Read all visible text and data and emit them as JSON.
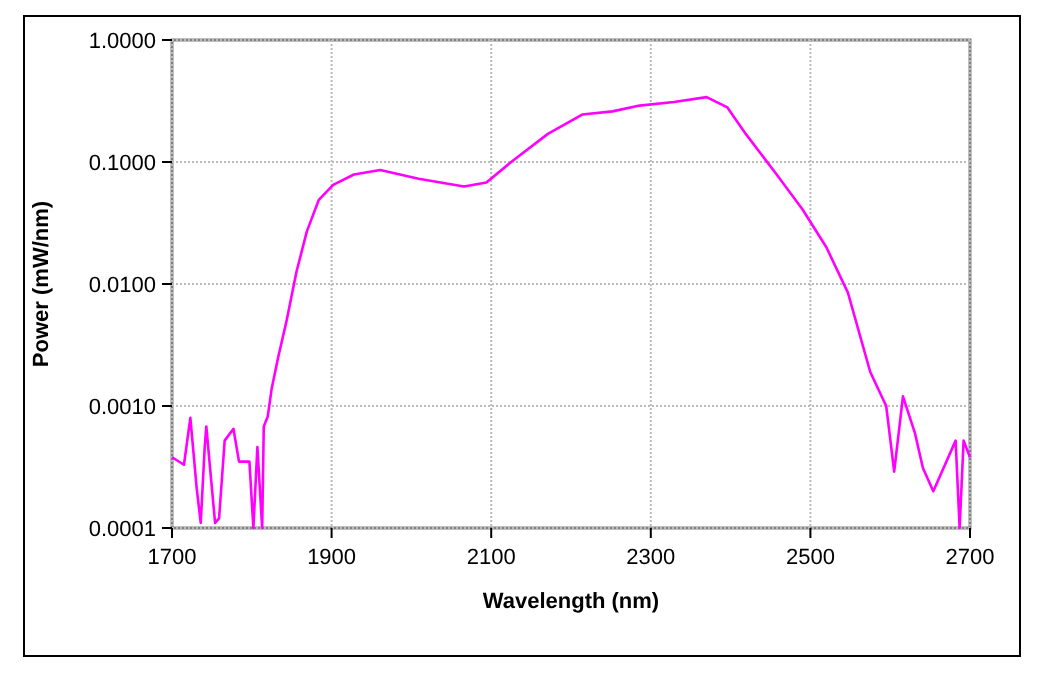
{
  "chart_data": {
    "type": "line",
    "xlabel": "Wavelength (nm)",
    "ylabel": "Power (mW/nm)",
    "log": "y",
    "grid": true,
    "marker": "none",
    "line_style": "solid",
    "xlim": [
      1700,
      2700
    ],
    "xticks": [
      1700,
      1900,
      2100,
      2300,
      2500,
      2700
    ],
    "ylim": [
      0.0001,
      1
    ],
    "yticks": [
      {
        "value": 0.0001,
        "label": "0.0001"
      },
      {
        "value": 0.001,
        "label": "0.0010"
      },
      {
        "value": 0.01,
        "label": "0.0100"
      },
      {
        "value": 0.1,
        "label": "0.1000"
      },
      {
        "value": 1,
        "label": "1.0000"
      }
    ],
    "series": [
      {
        "color": "#ff00ff",
        "x": [
          1700,
          1715,
          1723,
          1731,
          1736,
          1741,
          1743,
          1749,
          1754,
          1759,
          1766,
          1777,
          1784,
          1797,
          1802,
          1807,
          1813,
          1815,
          1820,
          1825,
          1833,
          1843,
          1856,
          1869,
          1884,
          1902,
          1928,
          1961,
          2009,
          2066,
          2094,
          2125,
          2171,
          2214,
          2252,
          2286,
          2329,
          2370,
          2396,
          2419,
          2457,
          2490,
          2520,
          2547,
          2575,
          2595,
          2605,
          2616,
          2631,
          2641,
          2654,
          2682,
          2687,
          2692,
          2700
        ],
        "values": [
          0.00038,
          0.00033,
          0.0008,
          0.00021,
          0.00011,
          0.00046,
          0.00068,
          0.00025,
          0.00011,
          0.00012,
          0.00052,
          0.00065,
          0.00035,
          0.00035,
          0.0001,
          0.00046,
          0.0001,
          0.00068,
          0.00082,
          0.0014,
          0.0025,
          0.0048,
          0.0126,
          0.027,
          0.049,
          0.065,
          0.079,
          0.086,
          0.073,
          0.063,
          0.068,
          0.1,
          0.17,
          0.245,
          0.26,
          0.29,
          0.31,
          0.34,
          0.28,
          0.17,
          0.08,
          0.041,
          0.02,
          0.0085,
          0.0019,
          0.001,
          0.00029,
          0.0012,
          0.0006,
          0.00031,
          0.0002,
          0.00052,
          0.0001,
          0.00052,
          0.00038
        ]
      }
    ]
  }
}
